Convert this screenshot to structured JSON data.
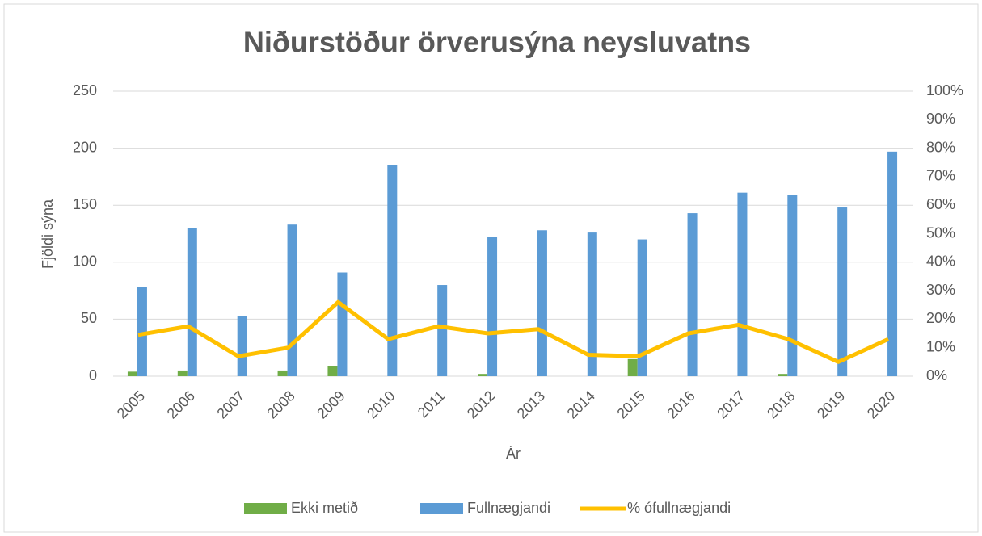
{
  "chart_data": {
    "type": "bar_line",
    "title": "Niðurstöður örverusýna neysluvatns",
    "y_label": "Fjöldi sýna",
    "x_label": "Ár",
    "categories": [
      "2005",
      "2006",
      "2007",
      "2008",
      "2009",
      "2010",
      "2011",
      "2012",
      "2013",
      "2014",
      "2015",
      "2016",
      "2017",
      "2018",
      "2019",
      "2020"
    ],
    "series": [
      {
        "name": "Ekki metið",
        "color": "#70ad47",
        "type": "bar",
        "values": [
          4,
          5,
          0,
          5,
          9,
          0,
          0,
          2,
          0,
          0,
          15,
          0,
          0,
          2,
          0,
          0
        ]
      },
      {
        "name": "Fullnægjandi",
        "color": "#5b9bd5",
        "type": "bar",
        "values": [
          78,
          130,
          53,
          133,
          91,
          185,
          80,
          122,
          128,
          126,
          120,
          143,
          161,
          159,
          148,
          197
        ]
      },
      {
        "name": "% ófullnægjandi",
        "color": "#ffc000",
        "type": "line",
        "axis": "y2",
        "values": [
          14.5,
          17.5,
          7,
          10,
          26,
          13,
          17.5,
          15,
          16.5,
          7.5,
          7,
          15,
          18,
          13,
          5,
          13
        ]
      }
    ],
    "ylim": [
      0,
      250
    ],
    "yticks": [
      0,
      50,
      100,
      150,
      200,
      250
    ],
    "y2lim": [
      0,
      100
    ],
    "y2ticks": [
      {
        "value": 0,
        "label": "0%"
      },
      {
        "value": 10,
        "label": "10%"
      },
      {
        "value": 20,
        "label": "20%"
      },
      {
        "value": 30,
        "label": "30%"
      },
      {
        "value": 40,
        "label": "40%"
      },
      {
        "value": 50,
        "label": "50%"
      },
      {
        "value": 60,
        "label": "60%"
      },
      {
        "value": 70,
        "label": "70%"
      },
      {
        "value": 80,
        "label": "80%"
      },
      {
        "value": 90,
        "label": "90%"
      },
      {
        "value": 100,
        "label": "100%"
      }
    ],
    "grid": true,
    "legend": "bottom"
  }
}
